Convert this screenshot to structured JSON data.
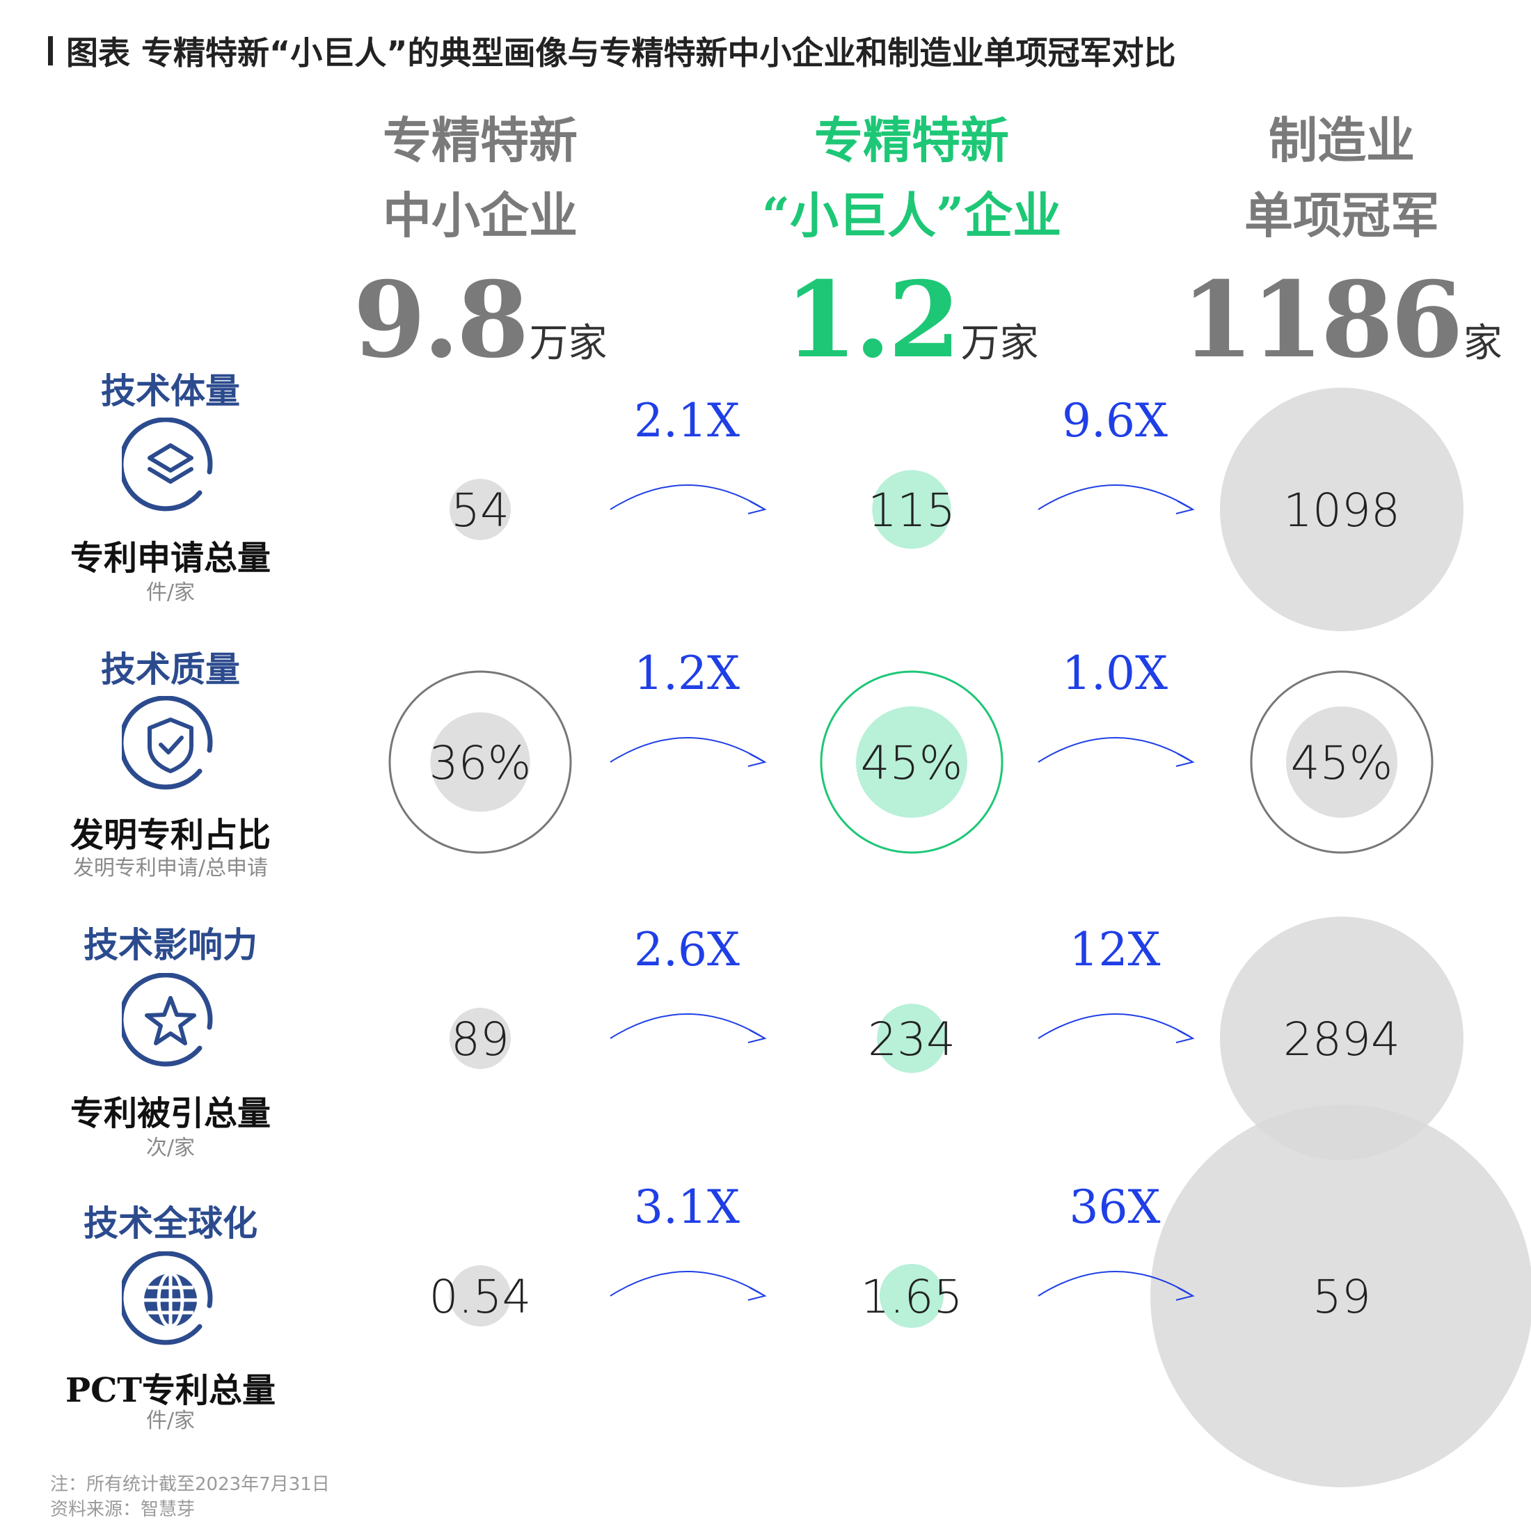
{
  "title": "图表 专精特新“小巨人”的典型画像与专精特新中小企业和制造业单项冠军对比",
  "colors": {
    "gray_circle": "#d9d9d9",
    "green_circle": "#b8f0d8",
    "green_accent": "#1dc776",
    "multiplier_blue": "#1f3fe6",
    "metric_blue": "#2c4b8e",
    "ring_gray": "#777777"
  },
  "columns": [
    {
      "line1": "专精特新",
      "line2": "中小企业",
      "count": "9.8",
      "unit": "万家",
      "color": "#7a7a7a"
    },
    {
      "line1": "专精特新",
      "line2": "“小巨人”企业",
      "count": "1.2",
      "unit": "万家",
      "color": "#1dc776"
    },
    {
      "line1": "制造业",
      "line2": "单项冠军",
      "count": "1186",
      "unit": "家",
      "color": "#7a7a7a"
    }
  ],
  "metrics": [
    {
      "title": "技术体量",
      "icon": "layers-icon",
      "name": "专利申请总量",
      "unit": "件/家"
    },
    {
      "title": "技术质量",
      "icon": "shield-check-icon",
      "name": "发明专利占比",
      "unit": "发明专利申请/总申请"
    },
    {
      "title": "技术影响力",
      "icon": "star-icon",
      "name": "专利被引总量",
      "unit": "次/家"
    },
    {
      "title": "技术全球化",
      "icon": "globe-icon",
      "name": "PCT专利总量",
      "unit": "件/家"
    }
  ],
  "notes": {
    "note": "注：所有统计截至2023年7月31日",
    "source": "资料来源：智慧芽"
  },
  "chart_data": {
    "type": "bubble comparison",
    "categories": [
      "专精特新中小企业",
      "专精特新“小巨人”企业",
      "制造业单项冠军"
    ],
    "series": [
      {
        "name": "专利申请总量",
        "values": [
          54,
          115,
          1098
        ],
        "labels": [
          "54",
          "115",
          "1098"
        ],
        "multipliers": [
          "2.1X",
          "9.6X"
        ]
      },
      {
        "name": "发明专利占比",
        "values": [
          36,
          45,
          45
        ],
        "labels": [
          "36%",
          "45%",
          "45%"
        ],
        "multipliers": [
          "1.2X",
          "1.0X"
        ],
        "ring": true
      },
      {
        "name": "专利被引总量",
        "values": [
          89,
          234,
          2894
        ],
        "labels": [
          "89",
          "234",
          "2894"
        ],
        "multipliers": [
          "2.6X",
          "12X"
        ]
      },
      {
        "name": "PCT专利总量",
        "values": [
          0.54,
          1.65,
          59
        ],
        "labels": [
          "0.54",
          "1.65",
          "59"
        ],
        "multipliers": [
          "3.1X",
          "36X"
        ]
      }
    ]
  }
}
